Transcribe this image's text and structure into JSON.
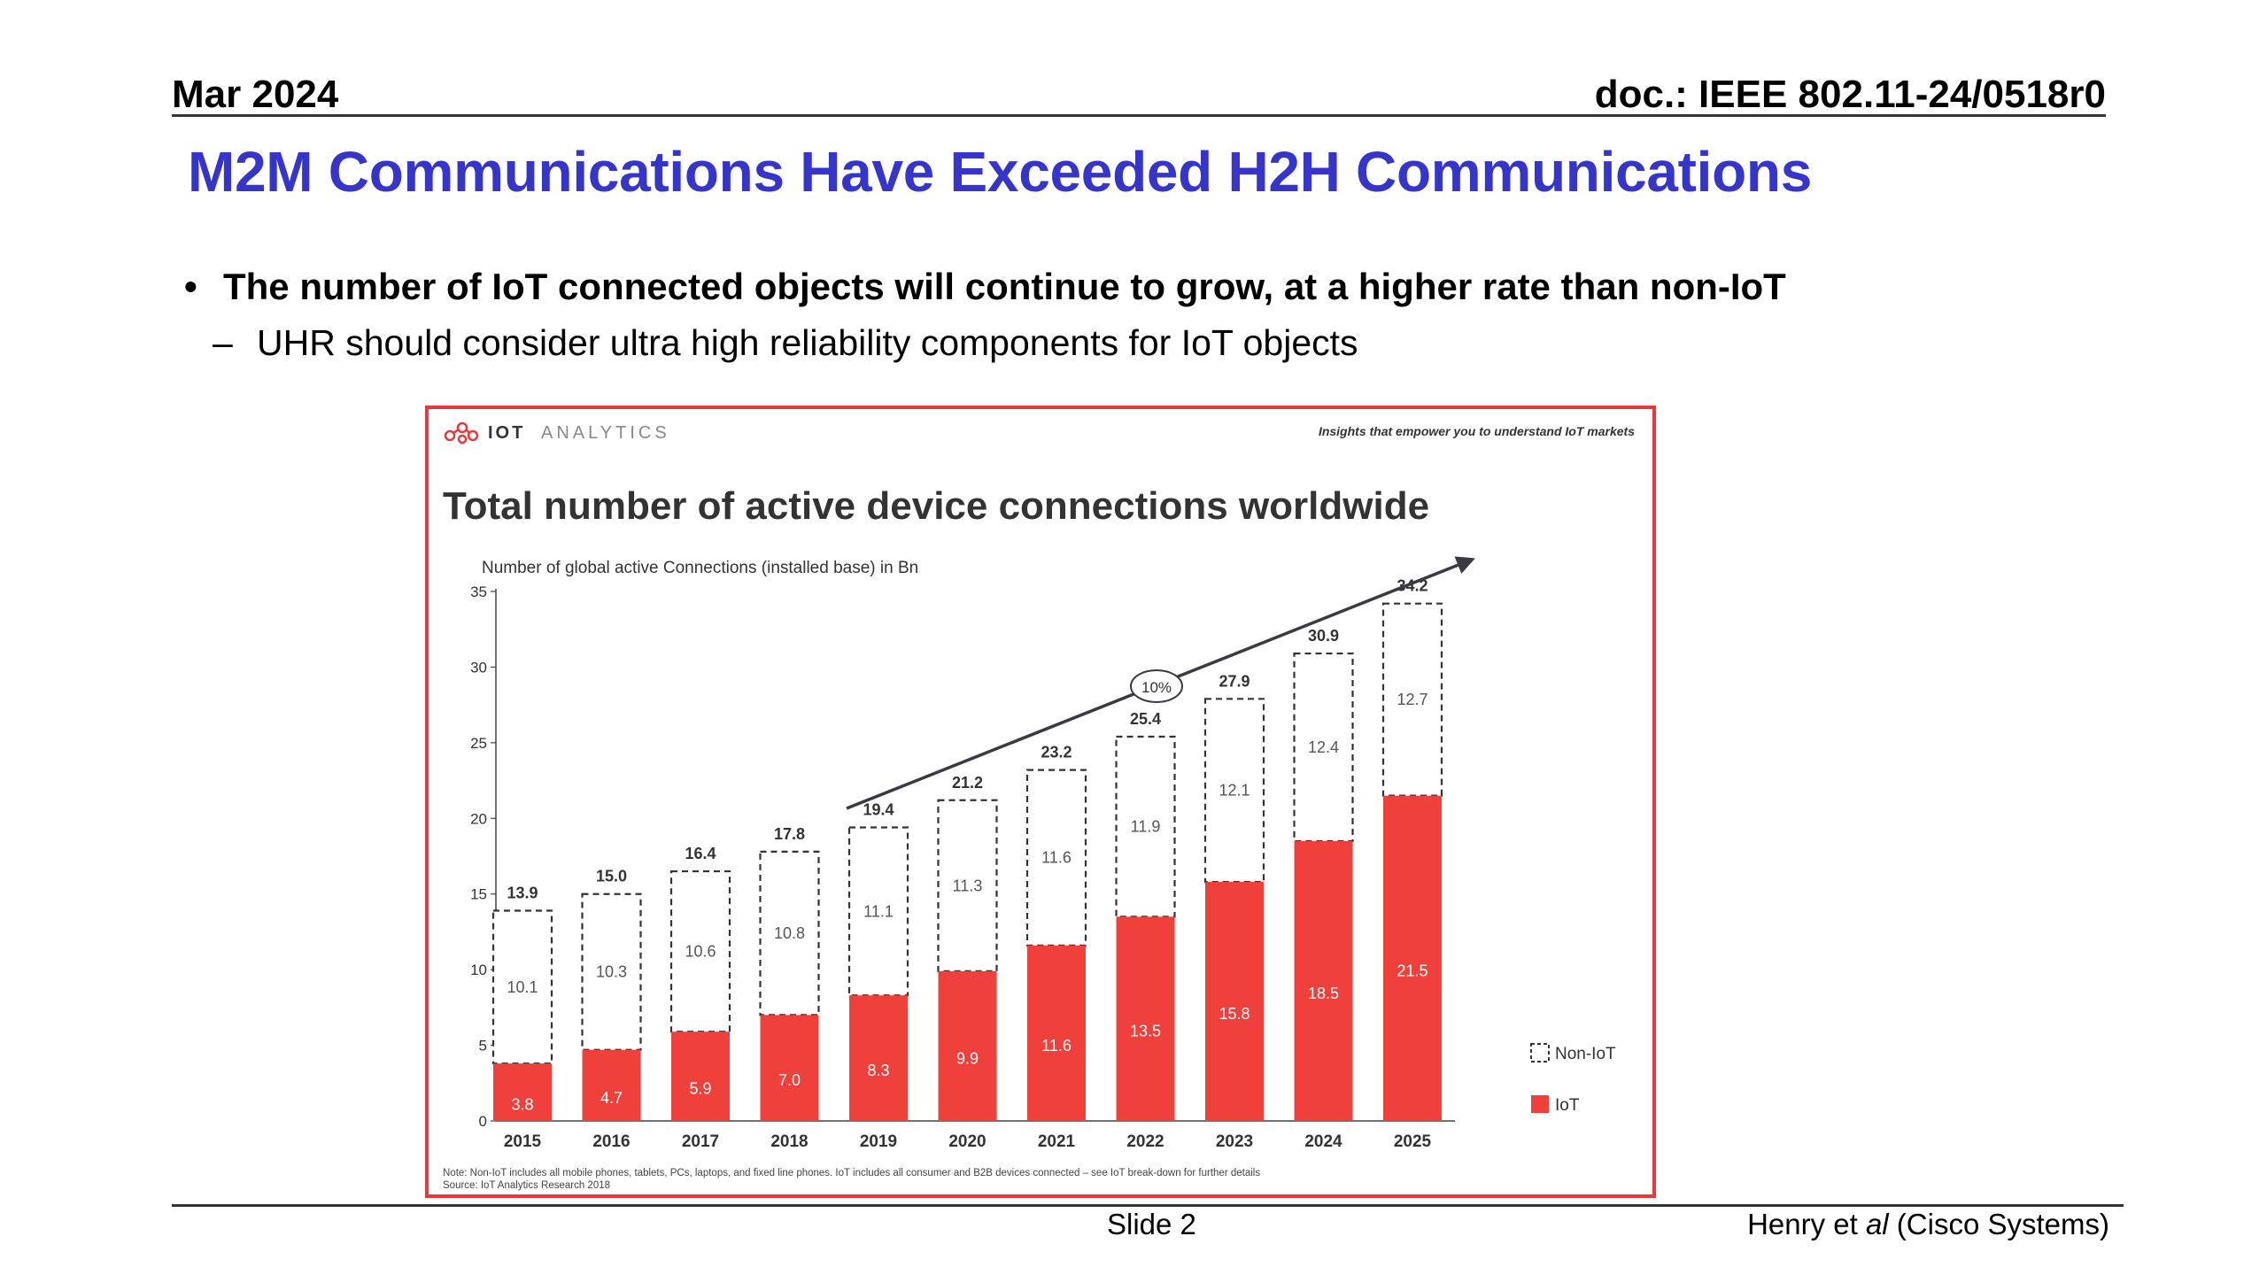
{
  "header": {
    "date": "Mar 2024",
    "doc": "doc.: IEEE 802.11-24/0518r0"
  },
  "slide": {
    "title": "M2M Communications Have Exceeded H2H Communications",
    "bullet1": "The number of IoT connected objects will continue to grow, at a higher rate than non-IoT",
    "bullet2": "UHR  should consider ultra high reliability components for IoT objects"
  },
  "footer": {
    "slide_label": "Slide 2",
    "author_prefix": "Henry et ",
    "author_italic": "al",
    "author_suffix": " (Cisco Systems)"
  },
  "figure": {
    "logo_bold": "IOT",
    "logo_light": "ANALYTICS",
    "tagline": "Insights that empower you to understand IoT markets",
    "note": "Note: Non-IoT includes all mobile phones, tablets, PCs, laptops, and fixed line phones. IoT includes all consumer and B2B devices connected – see IoT break-down for further details",
    "source": "Source: IoT Analytics Research 2018",
    "cagr_label": "10%"
  },
  "colors": {
    "iot": "#f0403b",
    "frame": "#e8383a",
    "title": "#3535cc",
    "axis": "#444444"
  },
  "chart_data": {
    "type": "bar",
    "stacked": true,
    "title": "Total number of active device connections worldwide",
    "ylabel": "Number of global active Connections (installed base) in Bn",
    "xlabel": "",
    "ylim": [
      0,
      35
    ],
    "yticks": [
      0,
      5,
      10,
      15,
      20,
      25,
      30,
      35
    ],
    "categories": [
      "2015",
      "2016",
      "2017",
      "2018",
      "2019",
      "2020",
      "2021",
      "2022",
      "2023",
      "2024",
      "2025"
    ],
    "series": [
      {
        "name": "IoT",
        "values": [
          3.8,
          4.7,
          5.9,
          7.0,
          8.3,
          9.9,
          11.6,
          13.5,
          15.8,
          18.5,
          21.5
        ],
        "labels": [
          "3.8",
          "4.7",
          "5.9",
          "7.0",
          "8.3",
          "9.9",
          "11.6",
          "13.5",
          "15.8",
          "18.5",
          "21.5"
        ]
      },
      {
        "name": "Non-IoT",
        "values": [
          10.1,
          10.3,
          10.6,
          10.8,
          11.1,
          11.3,
          11.6,
          11.9,
          12.1,
          12.4,
          12.7
        ],
        "labels": [
          "10.1",
          "10.3",
          "10.6",
          "10.8",
          "11.1",
          "11.3",
          "11.6",
          "11.9",
          "12.1",
          "12.4",
          "12.7"
        ]
      }
    ],
    "totals": [
      "13.9",
      "15.0",
      "16.4",
      "17.8",
      "19.4",
      "21.2",
      "23.2",
      "25.4",
      "27.9",
      "30.9",
      "34.2"
    ],
    "legend_position": "bottom-right",
    "grid": false
  }
}
